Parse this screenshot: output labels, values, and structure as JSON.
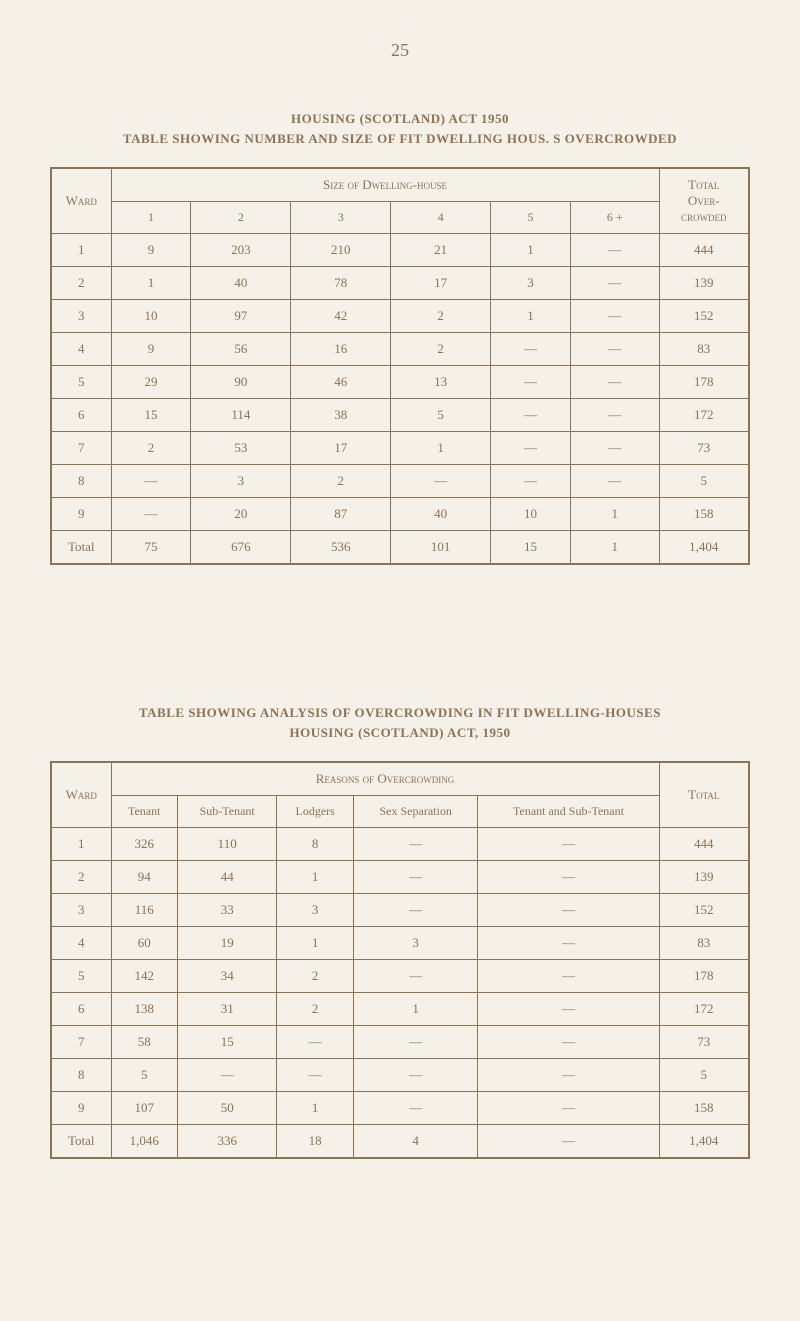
{
  "page_number": "25",
  "table1": {
    "title_line1": "HOUSING (SCOTLAND) ACT 1950",
    "title_line2": "TABLE SHOWING NUMBER AND SIZE OF FIT DWELLING HOUS. S OVERCROWDED",
    "ward_header": "Ward",
    "spanning_header": "Size of Dwelling-house",
    "total_header_line1": "Total",
    "total_header_line2": "Over-",
    "total_header_line3": "crowded",
    "size_columns": [
      "1",
      "2",
      "3",
      "4",
      "5",
      "6 +"
    ],
    "rows": [
      {
        "ward": "1",
        "sizes": [
          "9",
          "203",
          "210",
          "21",
          "1",
          "—"
        ],
        "total": "444"
      },
      {
        "ward": "2",
        "sizes": [
          "1",
          "40",
          "78",
          "17",
          "3",
          "—"
        ],
        "total": "139"
      },
      {
        "ward": "3",
        "sizes": [
          "10",
          "97",
          "42",
          "2",
          "1",
          "—"
        ],
        "total": "152"
      },
      {
        "ward": "4",
        "sizes": [
          "9",
          "56",
          "16",
          "2",
          "—",
          "—"
        ],
        "total": "83"
      },
      {
        "ward": "5",
        "sizes": [
          "29",
          "90",
          "46",
          "13",
          "—",
          "—"
        ],
        "total": "178"
      },
      {
        "ward": "6",
        "sizes": [
          "15",
          "114",
          "38",
          "5",
          "—",
          "—"
        ],
        "total": "172"
      },
      {
        "ward": "7",
        "sizes": [
          "2",
          "53",
          "17",
          "1",
          "—",
          "—"
        ],
        "total": "73"
      },
      {
        "ward": "8",
        "sizes": [
          "—",
          "3",
          "2",
          "—",
          "—",
          "—"
        ],
        "total": "5"
      },
      {
        "ward": "9",
        "sizes": [
          "—",
          "20",
          "87",
          "40",
          "10",
          "1"
        ],
        "total": "158"
      },
      {
        "ward": "Total",
        "sizes": [
          "75",
          "676",
          "536",
          "101",
          "15",
          "1"
        ],
        "total": "1,404"
      }
    ]
  },
  "table2": {
    "title_line1": "TABLE SHOWING ANALYSIS OF OVERCROWDING IN FIT DWELLING-HOUSES",
    "title_line2": "HOUSING (SCOTLAND) ACT, 1950",
    "ward_header": "Ward",
    "spanning_header": "Reasons of Overcrowding",
    "total_header": "Total",
    "reason_columns": [
      "Tenant",
      "Sub-Tenant",
      "Lodgers",
      "Sex Separation",
      "Tenant and Sub-Tenant"
    ],
    "rows": [
      {
        "ward": "1",
        "reasons": [
          "326",
          "110",
          "8",
          "—",
          "—"
        ],
        "total": "444"
      },
      {
        "ward": "2",
        "reasons": [
          "94",
          "44",
          "1",
          "—",
          "—"
        ],
        "total": "139"
      },
      {
        "ward": "3",
        "reasons": [
          "116",
          "33",
          "3",
          "—",
          "—"
        ],
        "total": "152"
      },
      {
        "ward": "4",
        "reasons": [
          "60",
          "19",
          "1",
          "3",
          "—"
        ],
        "total": "83"
      },
      {
        "ward": "5",
        "reasons": [
          "142",
          "34",
          "2",
          "—",
          "—"
        ],
        "total": "178"
      },
      {
        "ward": "6",
        "reasons": [
          "138",
          "31",
          "2",
          "1",
          "—"
        ],
        "total": "172"
      },
      {
        "ward": "7",
        "reasons": [
          "58",
          "15",
          "—",
          "—",
          "—"
        ],
        "total": "73"
      },
      {
        "ward": "8",
        "reasons": [
          "5",
          "—",
          "—",
          "—",
          "—"
        ],
        "total": "5"
      },
      {
        "ward": "9",
        "reasons": [
          "107",
          "50",
          "1",
          "—",
          "—"
        ],
        "total": "158"
      },
      {
        "ward": "Total",
        "reasons": [
          "1,046",
          "336",
          "18",
          "4",
          "—"
        ],
        "total": "1,404"
      }
    ]
  },
  "colors": {
    "background": "#f5f0e8",
    "text": "#8b7355",
    "border": "#8b7355"
  }
}
